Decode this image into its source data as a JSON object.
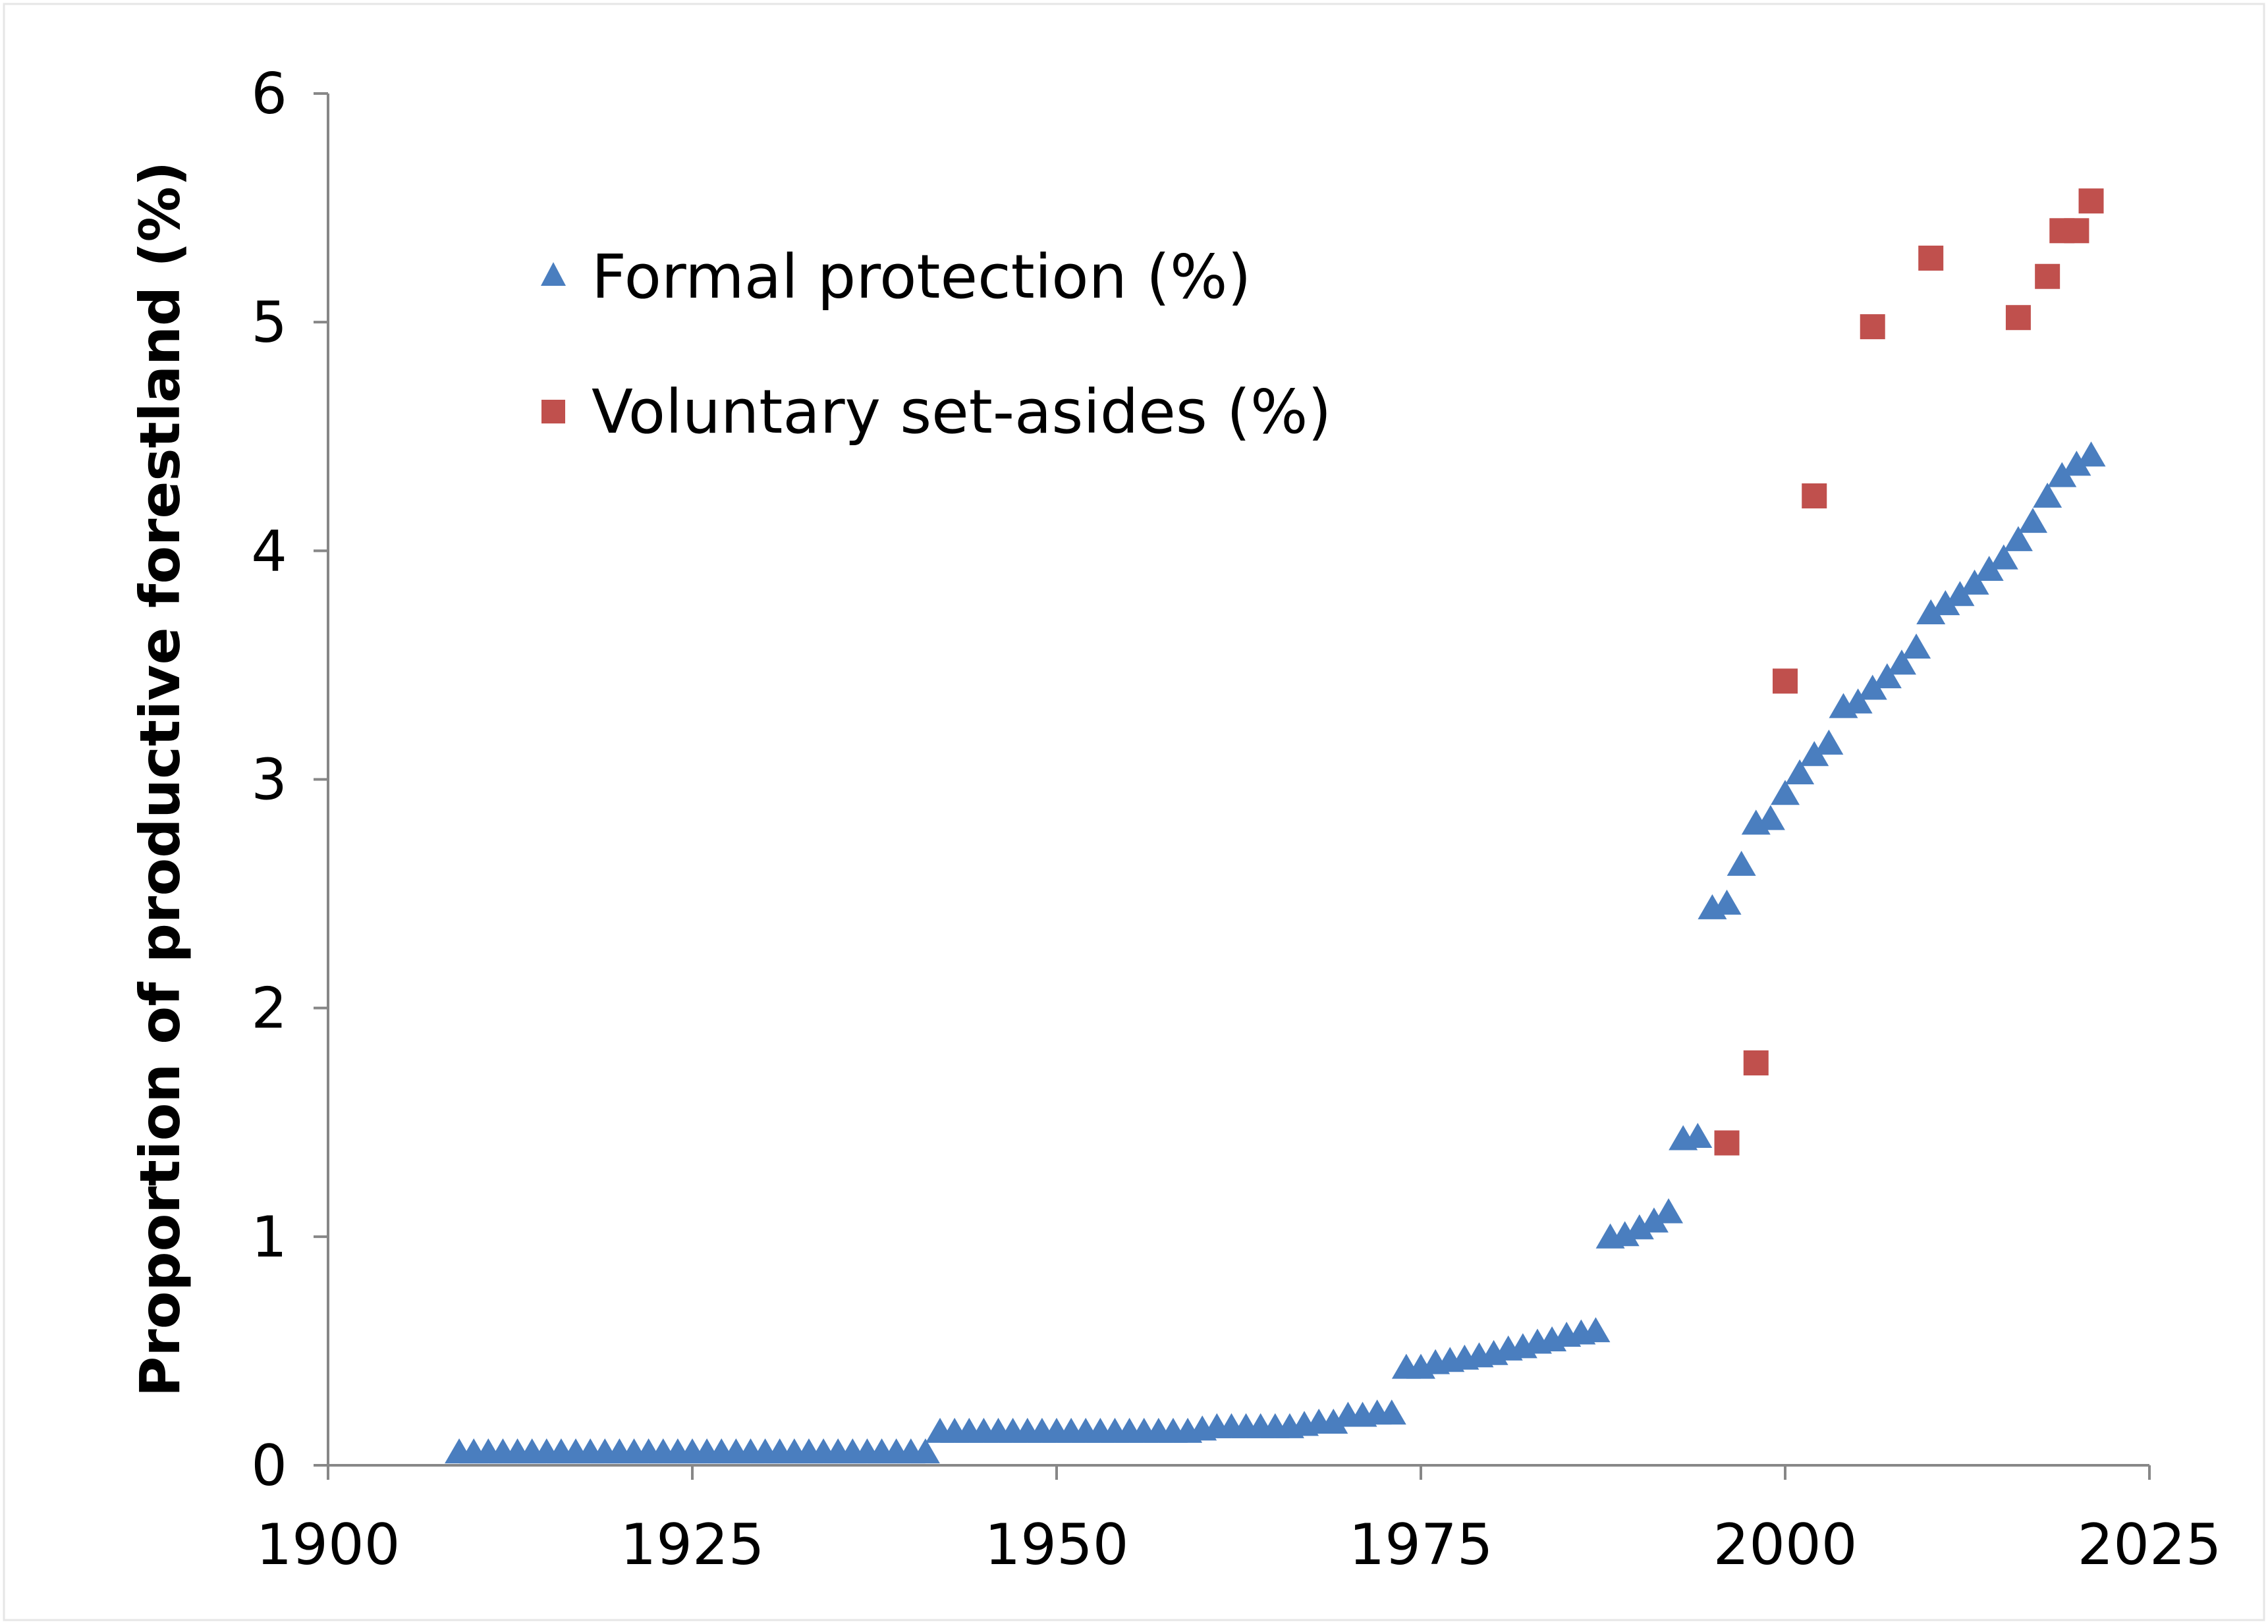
{
  "chart_data": {
    "type": "scatter",
    "title": "",
    "xlabel": "",
    "ylabel": "Proportion of productive forestland (%)",
    "xlim": [
      1900,
      2025
    ],
    "ylim": [
      0,
      6
    ],
    "xticks": [
      1900,
      1925,
      1950,
      1975,
      2000,
      2025
    ],
    "yticks": [
      0,
      1,
      2,
      3,
      4,
      5,
      6
    ],
    "grid": false,
    "legend_position": "top-left",
    "series": [
      {
        "name": "Formal protection (%)",
        "marker": "triangle",
        "color": "#4a7ebf",
        "x": [
          1909,
          1910,
          1911,
          1912,
          1913,
          1914,
          1915,
          1916,
          1917,
          1918,
          1919,
          1920,
          1921,
          1922,
          1923,
          1924,
          1925,
          1926,
          1927,
          1928,
          1929,
          1930,
          1931,
          1932,
          1933,
          1934,
          1935,
          1936,
          1937,
          1938,
          1939,
          1940,
          1941,
          1942,
          1943,
          1944,
          1945,
          1946,
          1947,
          1948,
          1949,
          1950,
          1951,
          1952,
          1953,
          1954,
          1955,
          1956,
          1957,
          1958,
          1959,
          1960,
          1961,
          1962,
          1963,
          1964,
          1965,
          1966,
          1967,
          1968,
          1969,
          1970,
          1971,
          1972,
          1973,
          1974,
          1975,
          1976,
          1977,
          1978,
          1979,
          1980,
          1981,
          1982,
          1983,
          1984,
          1985,
          1986,
          1987,
          1988,
          1989,
          1990,
          1991,
          1992,
          1993,
          1994,
          1995,
          1996,
          1997,
          1998,
          1999,
          2000,
          2001,
          2002,
          2003,
          2004,
          2005,
          2006,
          2007,
          2008,
          2009,
          2010,
          2011,
          2012,
          2013,
          2014,
          2015,
          2016,
          2017,
          2018,
          2019,
          2020,
          2021
        ],
        "values": [
          0.05,
          0.05,
          0.05,
          0.05,
          0.05,
          0.05,
          0.05,
          0.05,
          0.05,
          0.05,
          0.05,
          0.05,
          0.05,
          0.05,
          0.05,
          0.05,
          0.05,
          0.05,
          0.05,
          0.05,
          0.05,
          0.05,
          0.05,
          0.05,
          0.05,
          0.05,
          0.05,
          0.05,
          0.05,
          0.05,
          0.05,
          0.05,
          0.05,
          0.14,
          0.14,
          0.14,
          0.14,
          0.14,
          0.14,
          0.14,
          0.14,
          0.14,
          0.14,
          0.14,
          0.14,
          0.14,
          0.14,
          0.14,
          0.14,
          0.14,
          0.14,
          0.15,
          0.16,
          0.16,
          0.16,
          0.16,
          0.16,
          0.16,
          0.17,
          0.18,
          0.18,
          0.21,
          0.21,
          0.22,
          0.22,
          0.42,
          0.42,
          0.44,
          0.45,
          0.46,
          0.47,
          0.48,
          0.5,
          0.51,
          0.53,
          0.54,
          0.56,
          0.57,
          0.58,
          0.99,
          1.0,
          1.03,
          1.06,
          1.1,
          1.42,
          1.43,
          2.43,
          2.45,
          2.62,
          2.8,
          2.82,
          2.93,
          3.02,
          3.1,
          3.15,
          3.31,
          3.33,
          3.39,
          3.44,
          3.5,
          3.57,
          3.72,
          3.76,
          3.8,
          3.85,
          3.91,
          3.96,
          4.04,
          4.12,
          4.23,
          4.32,
          4.37,
          4.41
        ]
      },
      {
        "name": "Voluntary set-asides (%)",
        "marker": "square",
        "color": "#c0504d",
        "x": [
          1996,
          1998,
          2000,
          2002,
          2006,
          2010,
          2016,
          2018,
          2019,
          2020,
          2021
        ],
        "values": [
          1.41,
          1.76,
          3.43,
          4.24,
          4.98,
          5.28,
          5.02,
          5.2,
          5.4,
          5.4,
          5.53
        ]
      }
    ]
  }
}
